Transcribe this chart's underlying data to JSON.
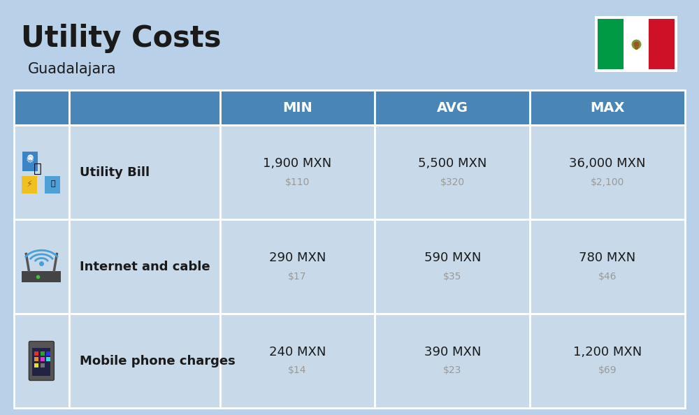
{
  "title": "Utility Costs",
  "subtitle": "Guadalajara",
  "bg_color": "#b8d0e8",
  "header_color": "#4a85b8",
  "header_text_color": "#ffffff",
  "row_color": "#c8daea",
  "text_color": "#1a1a1a",
  "subtext_color": "#999999",
  "columns": [
    "MIN",
    "AVG",
    "MAX"
  ],
  "rows": [
    {
      "label": "Utility Bill",
      "icon": "utility",
      "min_mxn": "1,900 MXN",
      "min_usd": "$110",
      "avg_mxn": "5,500 MXN",
      "avg_usd": "$320",
      "max_mxn": "36,000 MXN",
      "max_usd": "$2,100"
    },
    {
      "label": "Internet and cable",
      "icon": "internet",
      "min_mxn": "290 MXN",
      "min_usd": "$17",
      "avg_mxn": "590 MXN",
      "avg_usd": "$35",
      "max_mxn": "780 MXN",
      "max_usd": "$46"
    },
    {
      "label": "Mobile phone charges",
      "icon": "mobile",
      "min_mxn": "240 MXN",
      "min_usd": "$14",
      "avg_mxn": "390 MXN",
      "avg_usd": "$23",
      "max_mxn": "1,200 MXN",
      "max_usd": "$69"
    }
  ],
  "flag_green": "#009a44",
  "flag_white": "#ffffff",
  "flag_red": "#ce1126"
}
